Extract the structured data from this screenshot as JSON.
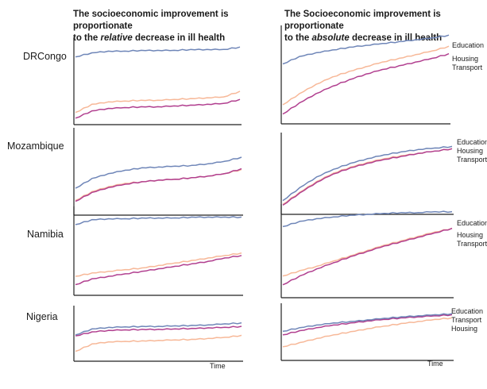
{
  "headings": {
    "left": {
      "line1": "The socioeconomic improvement is proportionate",
      "line2_pre": "to the ",
      "line2_em": "relative",
      "line2_post": " decrease in ill health"
    },
    "right": {
      "line1": "The Socioeconomic improvement is proportionate",
      "line2_pre": "to the ",
      "line2_em": "absolute",
      "line2_post": " decrease in ill health"
    }
  },
  "countries": [
    "DRCongo",
    "Mozambique",
    "Namibia",
    "Nigeria"
  ],
  "legends": [
    [
      "Education",
      "Housing",
      "Transport"
    ],
    [
      "Education",
      "Housing",
      "Transport"
    ],
    [
      "Education",
      "Housing",
      "Transport"
    ],
    [
      "Education",
      "Transport",
      "Housing"
    ]
  ],
  "time_label": "Time",
  "colors": {
    "Education": "#6f86b8",
    "Housing": "#f7b898",
    "Transport": "#b13f8f",
    "axis": "#222222"
  },
  "chart_data": [
    {
      "type": "line",
      "country": "DRCongo",
      "panel": "relative",
      "x": [
        0,
        1,
        2,
        3,
        4,
        5,
        6,
        7,
        8,
        9,
        10
      ],
      "series": [
        {
          "name": "Education",
          "values": [
            0.8,
            0.85,
            0.87,
            0.87,
            0.88,
            0.88,
            0.88,
            0.89,
            0.89,
            0.89,
            0.92
          ]
        },
        {
          "name": "Housing",
          "values": [
            0.12,
            0.22,
            0.25,
            0.26,
            0.27,
            0.27,
            0.28,
            0.29,
            0.3,
            0.31,
            0.38
          ]
        },
        {
          "name": "Transport",
          "values": [
            0.05,
            0.14,
            0.17,
            0.18,
            0.19,
            0.19,
            0.2,
            0.21,
            0.22,
            0.23,
            0.28
          ]
        }
      ]
    },
    {
      "type": "line",
      "country": "DRCongo",
      "panel": "absolute",
      "x": [
        0,
        1,
        2,
        3,
        4,
        5,
        6,
        7,
        8,
        9,
        10
      ],
      "series": [
        {
          "name": "Education",
          "values": [
            0.62,
            0.7,
            0.74,
            0.77,
            0.8,
            0.82,
            0.84,
            0.86,
            0.88,
            0.9,
            0.93
          ]
        },
        {
          "name": "Housing",
          "values": [
            0.18,
            0.3,
            0.4,
            0.48,
            0.54,
            0.59,
            0.64,
            0.68,
            0.72,
            0.76,
            0.81
          ]
        },
        {
          "name": "Transport",
          "values": [
            0.08,
            0.2,
            0.3,
            0.38,
            0.45,
            0.51,
            0.56,
            0.6,
            0.64,
            0.68,
            0.73
          ]
        }
      ]
    },
    {
      "type": "line",
      "country": "Mozambique",
      "panel": "relative",
      "x": [
        0,
        1,
        2,
        3,
        4,
        5,
        6,
        7,
        8,
        9,
        10
      ],
      "series": [
        {
          "name": "Education",
          "values": [
            0.3,
            0.42,
            0.48,
            0.52,
            0.55,
            0.56,
            0.57,
            0.58,
            0.6,
            0.63,
            0.68
          ]
        },
        {
          "name": "Housing",
          "values": [
            0.15,
            0.26,
            0.32,
            0.36,
            0.38,
            0.4,
            0.41,
            0.43,
            0.45,
            0.48,
            0.53
          ]
        },
        {
          "name": "Transport",
          "values": [
            0.14,
            0.25,
            0.31,
            0.35,
            0.38,
            0.4,
            0.41,
            0.43,
            0.45,
            0.48,
            0.54
          ]
        }
      ]
    },
    {
      "type": "line",
      "country": "Mozambique",
      "panel": "absolute",
      "x": [
        0,
        1,
        2,
        3,
        4,
        5,
        6,
        7,
        8,
        9,
        10
      ],
      "series": [
        {
          "name": "Education",
          "values": [
            0.15,
            0.32,
            0.46,
            0.56,
            0.64,
            0.7,
            0.75,
            0.79,
            0.82,
            0.84,
            0.86
          ]
        },
        {
          "name": "Housing",
          "values": [
            0.1,
            0.26,
            0.4,
            0.51,
            0.59,
            0.65,
            0.7,
            0.74,
            0.77,
            0.8,
            0.83
          ]
        },
        {
          "name": "Transport",
          "values": [
            0.09,
            0.25,
            0.39,
            0.5,
            0.58,
            0.64,
            0.69,
            0.73,
            0.77,
            0.8,
            0.83
          ]
        }
      ]
    },
    {
      "type": "line",
      "country": "Namibia",
      "panel": "relative",
      "x": [
        0,
        1,
        2,
        3,
        4,
        5,
        6,
        7,
        8,
        9,
        10
      ],
      "series": [
        {
          "name": "Education",
          "values": [
            0.82,
            0.88,
            0.89,
            0.89,
            0.9,
            0.9,
            0.9,
            0.91,
            0.91,
            0.91,
            0.91
          ]
        },
        {
          "name": "Housing",
          "values": [
            0.2,
            0.24,
            0.26,
            0.28,
            0.3,
            0.33,
            0.36,
            0.39,
            0.42,
            0.45,
            0.48
          ]
        },
        {
          "name": "Transport",
          "values": [
            0.1,
            0.17,
            0.2,
            0.23,
            0.26,
            0.29,
            0.32,
            0.35,
            0.38,
            0.42,
            0.45
          ]
        }
      ]
    },
    {
      "type": "line",
      "country": "Namibia",
      "panel": "absolute",
      "x": [
        0,
        1,
        2,
        3,
        4,
        5,
        6,
        7,
        8,
        9,
        10
      ],
      "series": [
        {
          "name": "Education",
          "values": [
            0.78,
            0.84,
            0.87,
            0.89,
            0.91,
            0.92,
            0.93,
            0.94,
            0.94,
            0.95,
            0.95
          ]
        },
        {
          "name": "Housing",
          "values": [
            0.22,
            0.28,
            0.33,
            0.39,
            0.45,
            0.51,
            0.57,
            0.62,
            0.67,
            0.72,
            0.76
          ]
        },
        {
          "name": "Transport",
          "values": [
            0.12,
            0.22,
            0.3,
            0.37,
            0.44,
            0.5,
            0.56,
            0.61,
            0.66,
            0.71,
            0.76
          ]
        }
      ]
    },
    {
      "type": "line",
      "country": "Nigeria",
      "panel": "relative",
      "x": [
        0,
        1,
        2,
        3,
        4,
        5,
        6,
        7,
        8,
        9,
        10
      ],
      "series": [
        {
          "name": "Education",
          "values": [
            0.48,
            0.6,
            0.63,
            0.64,
            0.65,
            0.65,
            0.66,
            0.67,
            0.68,
            0.7,
            0.72
          ]
        },
        {
          "name": "Housing",
          "values": [
            0.15,
            0.3,
            0.34,
            0.35,
            0.36,
            0.37,
            0.38,
            0.39,
            0.41,
            0.43,
            0.47
          ]
        },
        {
          "name": "Transport",
          "values": [
            0.46,
            0.54,
            0.57,
            0.58,
            0.59,
            0.59,
            0.6,
            0.61,
            0.62,
            0.63,
            0.65
          ]
        }
      ]
    },
    {
      "type": "line",
      "country": "Nigeria",
      "panel": "absolute",
      "x": [
        0,
        1,
        2,
        3,
        4,
        5,
        6,
        7,
        8,
        9,
        10
      ],
      "series": [
        {
          "name": "Education",
          "values": [
            0.52,
            0.59,
            0.64,
            0.68,
            0.71,
            0.74,
            0.77,
            0.8,
            0.82,
            0.84,
            0.86
          ]
        },
        {
          "name": "Housing",
          "values": [
            0.22,
            0.3,
            0.38,
            0.45,
            0.51,
            0.57,
            0.62,
            0.67,
            0.71,
            0.75,
            0.78
          ]
        },
        {
          "name": "Transport",
          "values": [
            0.45,
            0.53,
            0.59,
            0.64,
            0.68,
            0.72,
            0.75,
            0.78,
            0.8,
            0.82,
            0.84
          ]
        }
      ]
    }
  ]
}
